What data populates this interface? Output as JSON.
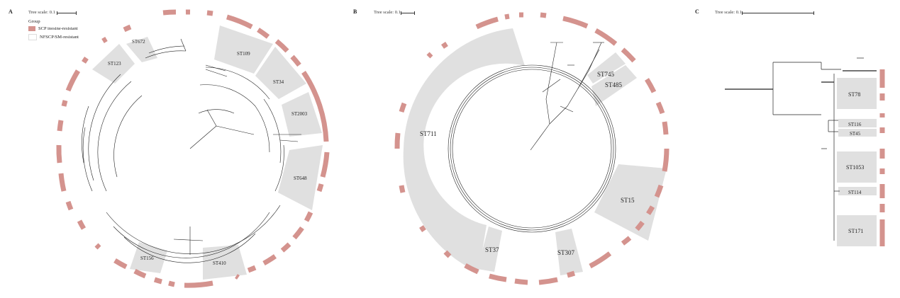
{
  "panels": {
    "a": {
      "letter": "A",
      "scale": "Tree scale: 0.1",
      "legend_title": "Group",
      "legend_items": [
        {
          "label": "SCP inosine-resistant",
          "color": "#d4938e"
        },
        {
          "label": "NFSCP/SM-resistant",
          "color": "#ffffff"
        }
      ],
      "clades": [
        "ST672",
        "ST123",
        "ST109",
        "ST34",
        "ST2003",
        "ST648",
        "ST156",
        "ST410"
      ]
    },
    "b": {
      "letter": "B",
      "scale": "Tree scale: 0.1",
      "clades": [
        "ST711",
        "ST745",
        "ST485",
        "ST15",
        "ST307",
        "ST37"
      ]
    },
    "c": {
      "letter": "C",
      "scale": "Tree scale: 0.1",
      "clades": [
        "ST78",
        "ST116",
        "ST45",
        "ST1053",
        "ST114",
        "ST171"
      ]
    }
  },
  "colors": {
    "ring": "#d4938e",
    "clade_fill": "#e0e0e0",
    "line": "#222222"
  }
}
